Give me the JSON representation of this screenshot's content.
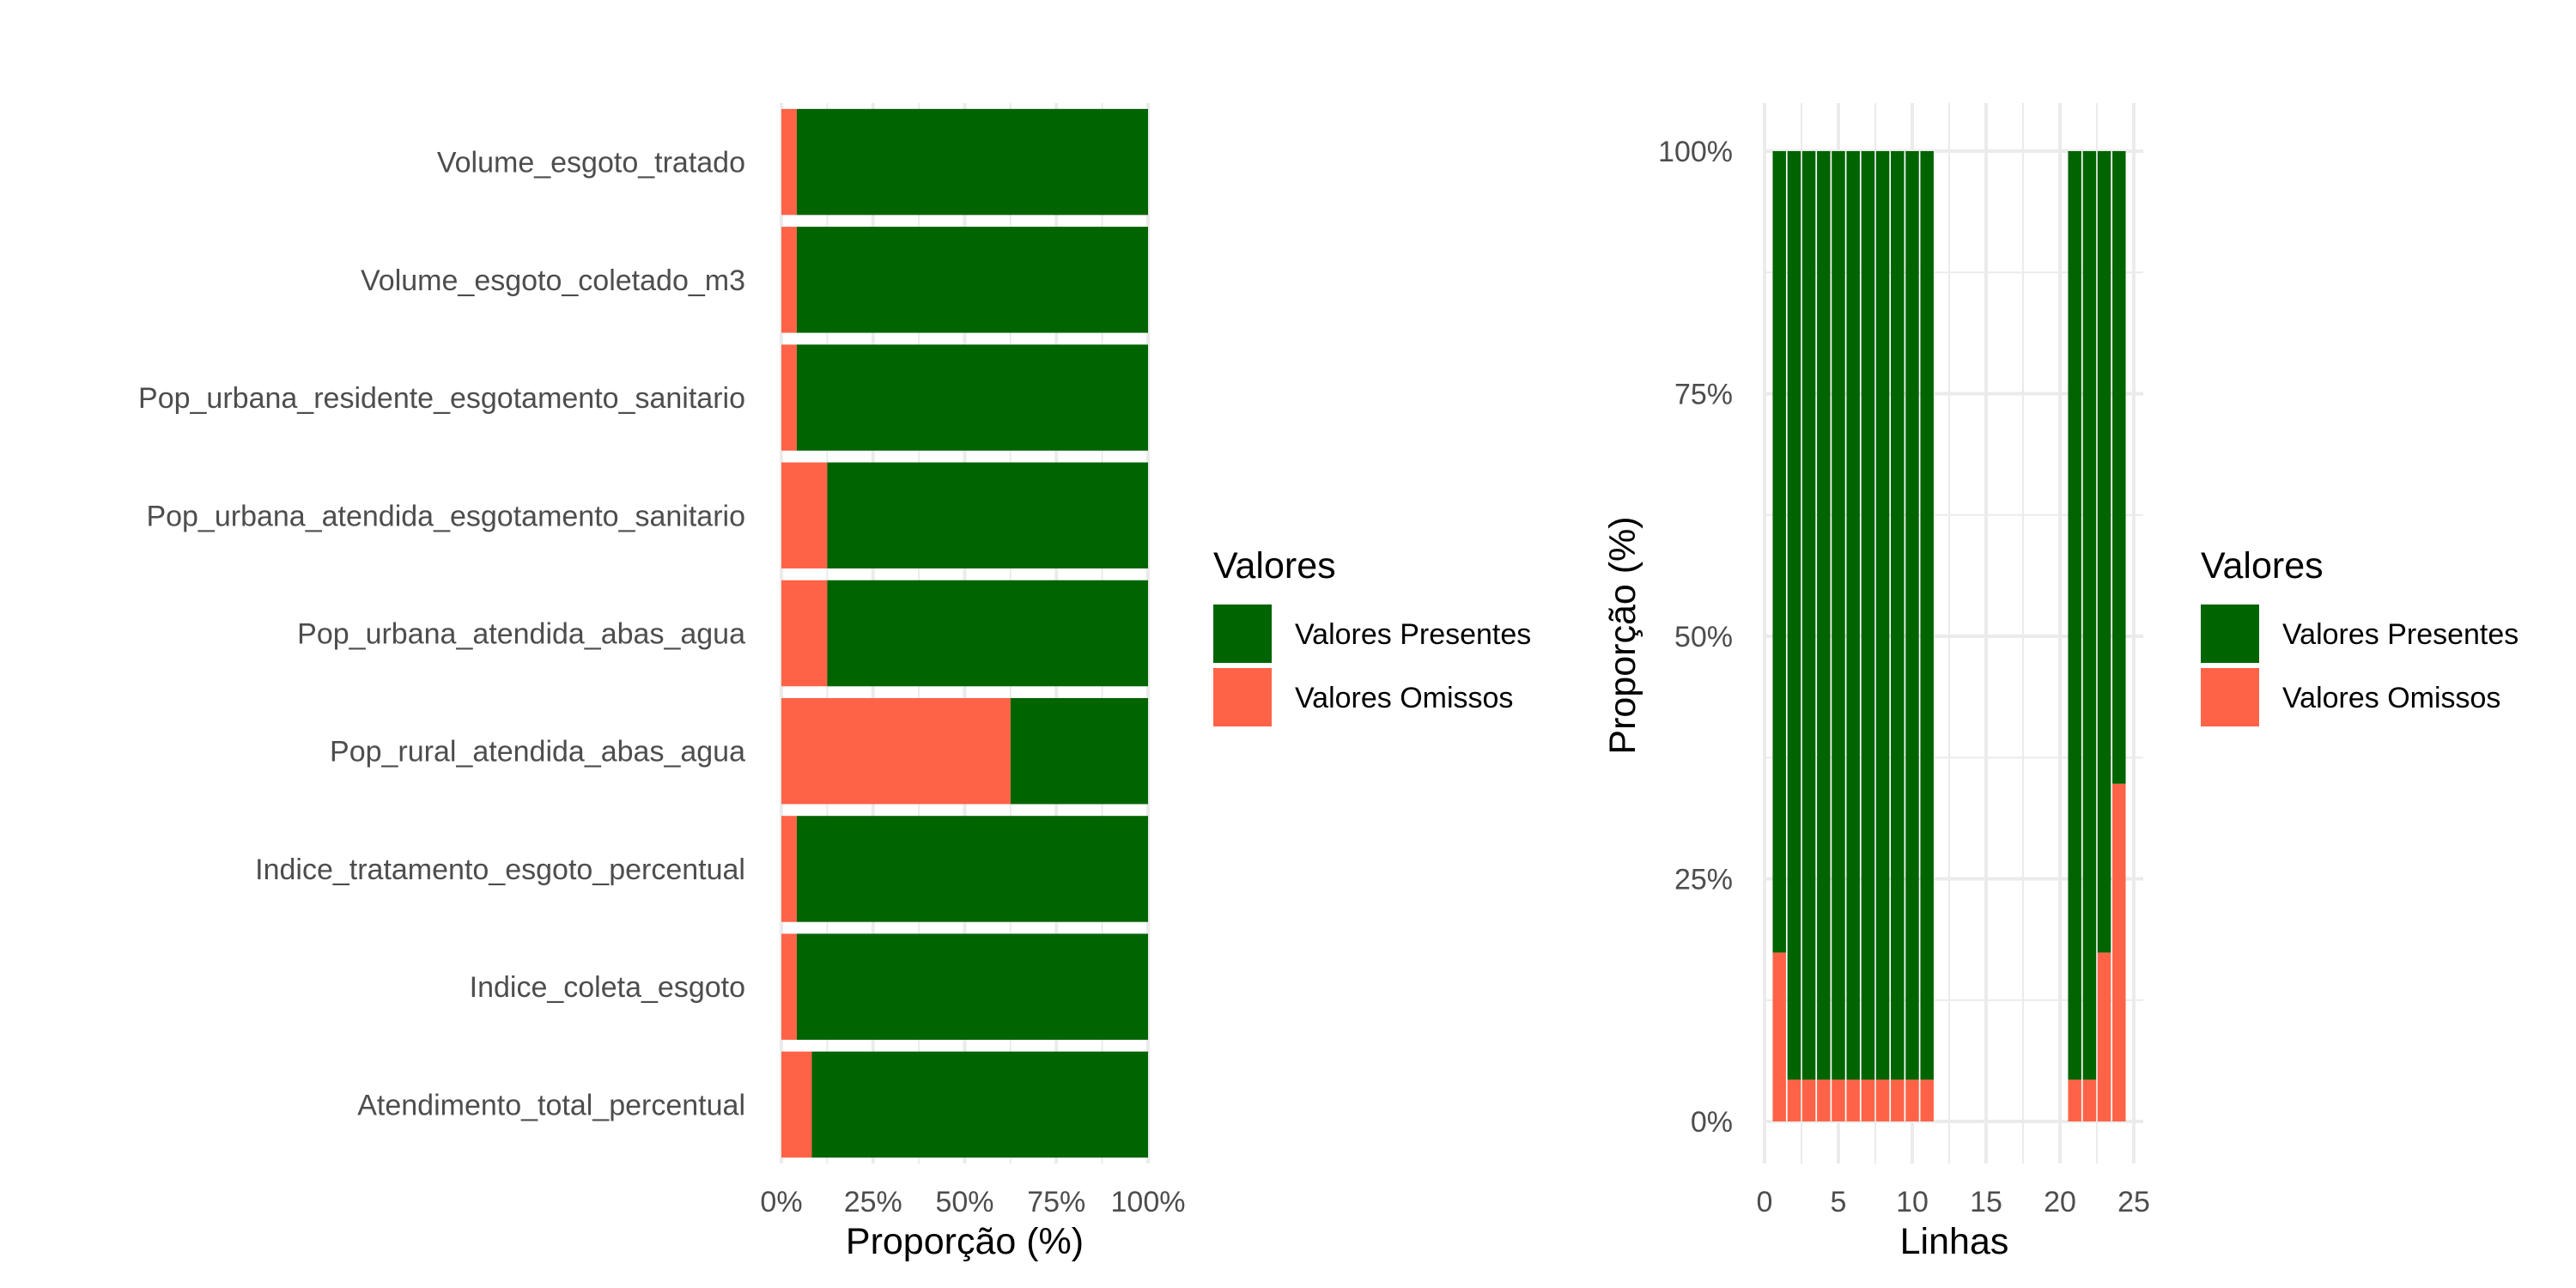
{
  "chart_data": [
    {
      "type": "bar",
      "orientation": "horizontal",
      "stacked": true,
      "xlabel": "Proporção (%)",
      "ylabel": "",
      "xlim": [
        0,
        100
      ],
      "x_ticks": [
        "0%",
        "25%",
        "50%",
        "75%",
        "100%"
      ],
      "categories": [
        "Volume_esgoto_tratado",
        "Volume_esgoto_coletado_m3",
        "Pop_urbana_residente_esgotamento_sanitario",
        "Pop_urbana_atendida_esgotamento_sanitario",
        "Pop_urbana_atendida_abas_agua",
        "Pop_rural_atendida_abas_agua",
        "Indice_tratamento_esgoto_percentual",
        "Indice_coleta_esgoto",
        "Atendimento_total_percentual"
      ],
      "series": [
        {
          "name": "Valores Omissos",
          "color": "#FF6347",
          "values": [
            4.2,
            4.2,
            4.2,
            12.5,
            12.5,
            62.5,
            4.2,
            4.2,
            8.3
          ]
        },
        {
          "name": "Valores Presentes",
          "color": "#006400",
          "values": [
            95.8,
            95.8,
            95.8,
            87.5,
            87.5,
            37.5,
            95.8,
            95.8,
            91.7
          ]
        }
      ],
      "legend": {
        "title": "Valores",
        "placement": "right",
        "items": [
          {
            "label": "Valores Presentes",
            "color": "#006400"
          },
          {
            "label": "Valores Omissos",
            "color": "#FF6347"
          }
        ]
      },
      "grid": true
    },
    {
      "type": "bar",
      "orientation": "vertical",
      "stacked": true,
      "xlabel": "Linhas",
      "ylabel": "Proporção (%)",
      "xlim": [
        0,
        25
      ],
      "ylim": [
        0,
        100
      ],
      "x_ticks": [
        "0",
        "5",
        "10",
        "15",
        "20",
        "25"
      ],
      "y_ticks": [
        "0%",
        "25%",
        "50%",
        "75%",
        "100%"
      ],
      "x": [
        1,
        2,
        3,
        4,
        5,
        6,
        7,
        8,
        9,
        10,
        11,
        21,
        22,
        23,
        24
      ],
      "series": [
        {
          "name": "Valores Omissos",
          "color": "#FF6347",
          "values": [
            17.4,
            4.3,
            4.3,
            4.3,
            4.3,
            4.3,
            4.3,
            4.3,
            4.3,
            4.3,
            4.3,
            4.3,
            4.3,
            17.4,
            34.8
          ]
        },
        {
          "name": "Valores Presentes",
          "color": "#006400",
          "values": [
            82.6,
            95.7,
            95.7,
            95.7,
            95.7,
            95.7,
            95.7,
            95.7,
            95.7,
            95.7,
            95.7,
            95.7,
            95.7,
            82.6,
            65.2
          ]
        }
      ],
      "legend": {
        "title": "Valores",
        "placement": "right",
        "items": [
          {
            "label": "Valores Presentes",
            "color": "#006400"
          },
          {
            "label": "Valores Omissos",
            "color": "#FF6347"
          }
        ]
      },
      "grid": true
    }
  ]
}
